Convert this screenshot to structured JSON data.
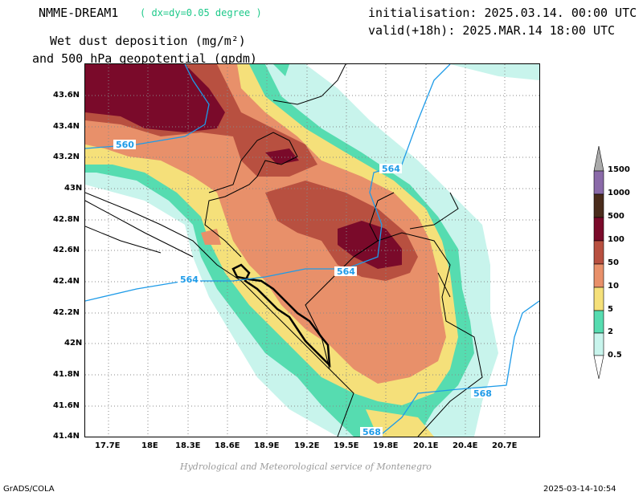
{
  "header": {
    "model": "NMME-DREAM1",
    "resolution": "( dx=dy=0.05 degree )",
    "variable_line1": "Wet dust deposition (mg/m²)",
    "variable_line2": "and 500 hPa geopotential (gpdm)",
    "init": "initialisation: 2025.03.14. 00:00 UTC",
    "valid": "valid(+18h): 2025.MAR.14 18:00 UTC"
  },
  "axes": {
    "x_ticks": [
      "17.7E",
      "18E",
      "18.3E",
      "18.6E",
      "18.9E",
      "19.2E",
      "19.5E",
      "19.8E",
      "20.1E",
      "20.4E",
      "20.7E"
    ],
    "y_ticks": [
      "43.6N",
      "43.4N",
      "43.2N",
      "43N",
      "42.8N",
      "42.6N",
      "42.4N",
      "42.2N",
      "42N",
      "41.8N",
      "41.6N",
      "41.4N"
    ]
  },
  "contours": {
    "labels": [
      "560",
      "564",
      "564",
      "564",
      "568",
      "568"
    ]
  },
  "legend": {
    "levels": [
      "1500",
      "1000",
      "500",
      "100",
      "50",
      "10",
      "5",
      "2",
      "0.5"
    ],
    "colors": [
      "#8a6aa8",
      "#4a2c1c",
      "#7a0a2a",
      "#b85040",
      "#e8906a",
      "#f5e07a",
      "#56dcb0",
      "#c8f4ec"
    ]
  },
  "footer": {
    "credit": "Hydrological and Meteorological service of Montenegro",
    "left": "GrADS/COLA",
    "right": "2025-03-14-10:54"
  }
}
